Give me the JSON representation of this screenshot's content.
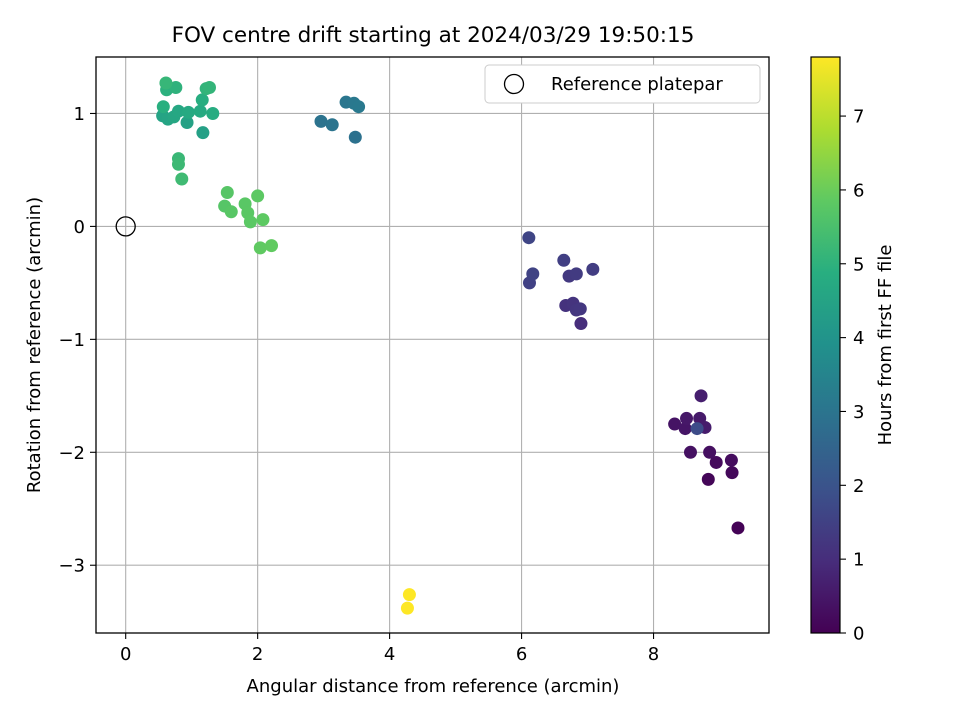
{
  "chart_data": {
    "type": "scatter",
    "title": "FOV centre drift starting at 2024/03/29 19:50:15",
    "xlabel": "Angular distance from reference (arcmin)",
    "ylabel": "Rotation from reference (arcmin)",
    "xlim": [
      -0.45,
      9.75
    ],
    "ylim": [
      -3.6,
      1.5
    ],
    "xticks": [
      0,
      2,
      4,
      6,
      8
    ],
    "yticks": [
      1,
      0,
      -1,
      -2,
      -3
    ],
    "xtick_labels": [
      "0",
      "2",
      "4",
      "6",
      "8"
    ],
    "ytick_labels": [
      "1",
      "0",
      "−1",
      "−2",
      "−3"
    ],
    "grid": true,
    "legend": {
      "position": "top-right",
      "entries": [
        "Reference platepar"
      ]
    },
    "reference_point": {
      "x": 0,
      "y": 0,
      "label": "Reference platepar"
    },
    "colorbar": {
      "label": "Hours from first FF file",
      "range": [
        0,
        7.8
      ],
      "ticks": [
        0,
        1,
        2,
        3,
        4,
        5,
        6,
        7
      ],
      "tick_labels": [
        "0",
        "1",
        "2",
        "3",
        "4",
        "5",
        "6",
        "7"
      ],
      "colormap": "viridis"
    },
    "points": [
      {
        "x": 9.28,
        "y": -2.67,
        "t": 0.05
      },
      {
        "x": 8.83,
        "y": -2.24,
        "t": 0.1
      },
      {
        "x": 9.19,
        "y": -2.18,
        "t": 0.15
      },
      {
        "x": 8.95,
        "y": -2.09,
        "t": 0.2
      },
      {
        "x": 9.18,
        "y": -2.07,
        "t": 0.25
      },
      {
        "x": 8.85,
        "y": -2.0,
        "t": 0.3
      },
      {
        "x": 8.56,
        "y": -2.0,
        "t": 0.35
      },
      {
        "x": 8.32,
        "y": -1.75,
        "t": 0.4
      },
      {
        "x": 8.48,
        "y": -1.79,
        "t": 0.45
      },
      {
        "x": 8.5,
        "y": -1.7,
        "t": 0.5
      },
      {
        "x": 8.7,
        "y": -1.7,
        "t": 0.55
      },
      {
        "x": 8.78,
        "y": -1.78,
        "t": 0.6
      },
      {
        "x": 8.72,
        "y": -1.5,
        "t": 0.65
      },
      {
        "x": 8.66,
        "y": -1.79,
        "t": 1.8
      },
      {
        "x": 6.9,
        "y": -0.86,
        "t": 1.0
      },
      {
        "x": 6.67,
        "y": -0.7,
        "t": 1.1
      },
      {
        "x": 6.78,
        "y": -0.68,
        "t": 1.15
      },
      {
        "x": 6.83,
        "y": -0.74,
        "t": 1.2
      },
      {
        "x": 6.89,
        "y": -0.73,
        "t": 1.25
      },
      {
        "x": 6.72,
        "y": -0.44,
        "t": 1.3
      },
      {
        "x": 6.83,
        "y": -0.42,
        "t": 1.35
      },
      {
        "x": 7.08,
        "y": -0.38,
        "t": 1.4
      },
      {
        "x": 6.64,
        "y": -0.3,
        "t": 1.45
      },
      {
        "x": 6.12,
        "y": -0.5,
        "t": 1.5
      },
      {
        "x": 6.17,
        "y": -0.42,
        "t": 1.55
      },
      {
        "x": 6.11,
        "y": -0.1,
        "t": 1.6
      },
      {
        "x": 3.48,
        "y": 0.79,
        "t": 2.9
      },
      {
        "x": 2.96,
        "y": 0.93,
        "t": 2.95
      },
      {
        "x": 3.13,
        "y": 0.9,
        "t": 3.0
      },
      {
        "x": 3.34,
        "y": 1.1,
        "t": 3.05
      },
      {
        "x": 3.46,
        "y": 1.09,
        "t": 3.1
      },
      {
        "x": 3.53,
        "y": 1.06,
        "t": 3.15
      },
      {
        "x": 1.17,
        "y": 0.83,
        "t": 4.4
      },
      {
        "x": 0.93,
        "y": 0.92,
        "t": 4.45
      },
      {
        "x": 0.56,
        "y": 0.98,
        "t": 4.5
      },
      {
        "x": 0.64,
        "y": 0.95,
        "t": 4.55
      },
      {
        "x": 0.73,
        "y": 0.97,
        "t": 4.6
      },
      {
        "x": 0.8,
        "y": 1.02,
        "t": 4.65
      },
      {
        "x": 0.95,
        "y": 1.01,
        "t": 4.7
      },
      {
        "x": 1.13,
        "y": 1.02,
        "t": 4.75
      },
      {
        "x": 1.32,
        "y": 1.0,
        "t": 4.8
      },
      {
        "x": 1.16,
        "y": 1.12,
        "t": 4.85
      },
      {
        "x": 0.57,
        "y": 1.06,
        "t": 4.9
      },
      {
        "x": 0.62,
        "y": 1.21,
        "t": 4.95
      },
      {
        "x": 0.76,
        "y": 1.23,
        "t": 5.0
      },
      {
        "x": 1.22,
        "y": 1.22,
        "t": 5.05
      },
      {
        "x": 1.27,
        "y": 1.23,
        "t": 5.1
      },
      {
        "x": 0.61,
        "y": 1.27,
        "t": 5.15
      },
      {
        "x": 0.8,
        "y": 0.6,
        "t": 5.2
      },
      {
        "x": 0.8,
        "y": 0.55,
        "t": 5.25
      },
      {
        "x": 0.85,
        "y": 0.42,
        "t": 5.3
      },
      {
        "x": 1.5,
        "y": 0.18,
        "t": 5.7
      },
      {
        "x": 1.54,
        "y": 0.3,
        "t": 5.72
      },
      {
        "x": 1.6,
        "y": 0.13,
        "t": 5.74
      },
      {
        "x": 1.81,
        "y": 0.2,
        "t": 5.76
      },
      {
        "x": 1.85,
        "y": 0.12,
        "t": 5.78
      },
      {
        "x": 1.89,
        "y": 0.04,
        "t": 5.8
      },
      {
        "x": 2.0,
        "y": 0.27,
        "t": 5.82
      },
      {
        "x": 2.08,
        "y": 0.06,
        "t": 5.84
      },
      {
        "x": 2.04,
        "y": -0.19,
        "t": 5.86
      },
      {
        "x": 2.21,
        "y": -0.17,
        "t": 5.88
      },
      {
        "x": 4.27,
        "y": -3.38,
        "t": 7.8
      },
      {
        "x": 4.3,
        "y": -3.26,
        "t": 7.8
      }
    ]
  }
}
